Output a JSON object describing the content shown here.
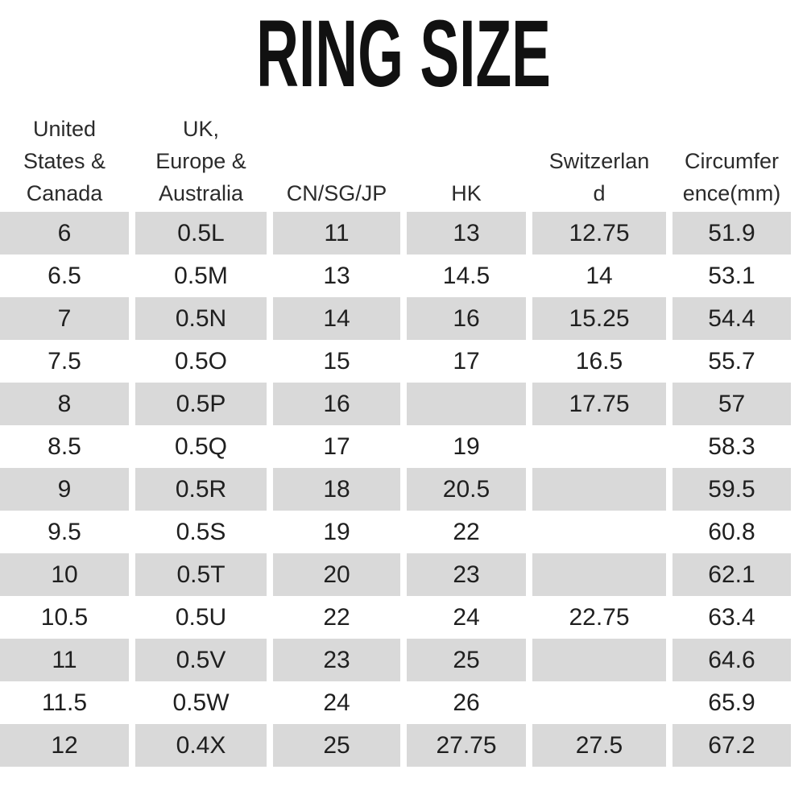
{
  "title": "RING SIZE",
  "colors": {
    "row_stripe": "#d9d9d9",
    "cell_text": "#1f1f1f",
    "header_text": "#2b2b2b",
    "title": "#111111"
  },
  "table": {
    "columns": [
      {
        "id": "us-canada",
        "label": "United States & Canada",
        "header_lines": [
          "United",
          "States &",
          "Canada"
        ]
      },
      {
        "id": "uk-europe-australia",
        "label": "UK, Europe & Australia",
        "header_lines": [
          "UK,",
          "Europe &",
          "Australia"
        ]
      },
      {
        "id": "cn-sg-jp",
        "label": "CN/SG/JP",
        "header_lines": [
          "CN/SG/JP"
        ]
      },
      {
        "id": "hk",
        "label": "HK",
        "header_lines": [
          "HK"
        ]
      },
      {
        "id": "switzerland",
        "label": "Switzerland",
        "header_lines": [
          "Switzerlan",
          "d"
        ]
      },
      {
        "id": "circumference-mm",
        "label": "Circumference(mm)",
        "header_lines": [
          "Circumfer",
          "ence(mm)"
        ]
      }
    ],
    "rows": [
      [
        "6",
        "0.5L",
        "11",
        "13",
        "12.75",
        "51.9"
      ],
      [
        "6.5",
        "0.5M",
        "13",
        "14.5",
        "14",
        "53.1"
      ],
      [
        "7",
        "0.5N",
        "14",
        "16",
        "15.25",
        "54.4"
      ],
      [
        "7.5",
        "0.5O",
        "15",
        "17",
        "16.5",
        "55.7"
      ],
      [
        "8",
        "0.5P",
        "16",
        "",
        "17.75",
        "57"
      ],
      [
        "8.5",
        "0.5Q",
        "17",
        "19",
        "",
        "58.3"
      ],
      [
        "9",
        "0.5R",
        "18",
        "20.5",
        "",
        "59.5"
      ],
      [
        "9.5",
        "0.5S",
        "19",
        "22",
        "",
        "60.8"
      ],
      [
        "10",
        "0.5T",
        "20",
        "23",
        "",
        "62.1"
      ],
      [
        "10.5",
        "0.5U",
        "22",
        "24",
        "22.75",
        "63.4"
      ],
      [
        "11",
        "0.5V",
        "23",
        "25",
        "",
        "64.6"
      ],
      [
        "11.5",
        "0.5W",
        "24",
        "26",
        "",
        "65.9"
      ],
      [
        "12",
        "0.4X",
        "25",
        "27.75",
        "27.5",
        "67.2"
      ]
    ]
  },
  "chart_data": {
    "type": "table",
    "title": "RING SIZE",
    "columns": [
      "United States & Canada",
      "UK, Europe & Australia",
      "CN/SG/JP",
      "HK",
      "Switzerland",
      "Circumference(mm)"
    ],
    "rows": [
      [
        "6",
        "0.5L",
        "11",
        "13",
        "12.75",
        "51.9"
      ],
      [
        "6.5",
        "0.5M",
        "13",
        "14.5",
        "14",
        "53.1"
      ],
      [
        "7",
        "0.5N",
        "14",
        "16",
        "15.25",
        "54.4"
      ],
      [
        "7.5",
        "0.5O",
        "15",
        "17",
        "16.5",
        "55.7"
      ],
      [
        "8",
        "0.5P",
        "16",
        "",
        "17.75",
        "57"
      ],
      [
        "8.5",
        "0.5Q",
        "17",
        "19",
        "",
        "58.3"
      ],
      [
        "9",
        "0.5R",
        "18",
        "20.5",
        "",
        "59.5"
      ],
      [
        "9.5",
        "0.5S",
        "19",
        "22",
        "",
        "60.8"
      ],
      [
        "10",
        "0.5T",
        "20",
        "23",
        "",
        "62.1"
      ],
      [
        "10.5",
        "0.5U",
        "22",
        "24",
        "22.75",
        "63.4"
      ],
      [
        "11",
        "0.5V",
        "23",
        "25",
        "",
        "64.6"
      ],
      [
        "11.5",
        "0.5W",
        "24",
        "26",
        "",
        "65.9"
      ],
      [
        "12",
        "0.4X",
        "25",
        "27.75",
        "27.5",
        "67.2"
      ]
    ],
    "layout": {
      "row_striping": "odd rows gray (#d9d9d9), even rows white, starting gray",
      "header_alignment": "bottom",
      "cell_alignment": "center"
    }
  }
}
